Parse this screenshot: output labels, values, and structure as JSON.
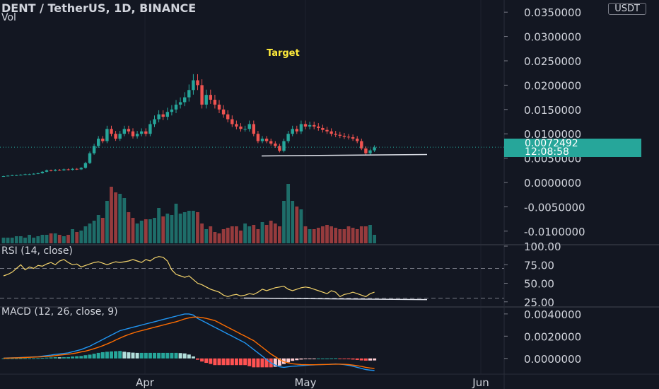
{
  "header": {
    "title": "DENT / TetherUS, 1D, BINANCE",
    "volume_label": "Vol",
    "currency_button": "USDT"
  },
  "annotations": {
    "target_label": "Target"
  },
  "price_badge": {
    "price": "0.0072492",
    "countdown": "12:08:58"
  },
  "indicators": {
    "rsi_label": "RSI (14, close)",
    "macd_label": "MACD (12, 26, close, 9)"
  },
  "colors": {
    "up": "#26a69a",
    "down": "#ef5350",
    "background": "#131722",
    "rsi_line": "#f3d36b",
    "macd_line": "#2196f3",
    "signal_line": "#ff6d00",
    "target_text": "#ffeb3b"
  },
  "chart_data": [
    {
      "type": "candlestick",
      "panel": "price",
      "y_tick_labels": [
        "0.0350000",
        "0.0300000",
        "0.0250000",
        "0.0200000",
        "0.0150000",
        "0.0100000",
        "0.0050000",
        "0.0000000",
        "-0.0050000",
        "-0.0100000"
      ],
      "x_tick_labels": [
        "Apr",
        "May",
        "Jun"
      ],
      "ylim": [
        -0.0125,
        0.0375
      ],
      "log_scale": false,
      "last_price": 0.0072492,
      "support_line": [
        0.00545,
        0.00575
      ],
      "ohlc_close": [
        0.0013,
        0.0014,
        0.0015,
        0.0015,
        0.0016,
        0.0017,
        0.0017,
        0.0018,
        0.0019,
        0.0022,
        0.0025,
        0.0024,
        0.0026,
        0.0025,
        0.0027,
        0.0026,
        0.0028,
        0.0027,
        0.003,
        0.004,
        0.006,
        0.0075,
        0.009,
        0.0085,
        0.011,
        0.01,
        0.009,
        0.01,
        0.011,
        0.0105,
        0.0095,
        0.01,
        0.0105,
        0.01,
        0.012,
        0.013,
        0.014,
        0.0135,
        0.0145,
        0.015,
        0.016,
        0.0165,
        0.0175,
        0.019,
        0.021,
        0.02,
        0.016,
        0.018,
        0.017,
        0.016,
        0.015,
        0.014,
        0.013,
        0.012,
        0.0115,
        0.011,
        0.011,
        0.012,
        0.01,
        0.0085,
        0.009,
        0.0085,
        0.008,
        0.0075,
        0.0065,
        0.0085,
        0.01,
        0.011,
        0.0105,
        0.012,
        0.0115,
        0.0118,
        0.0115,
        0.0112,
        0.0108,
        0.0105,
        0.01,
        0.0098,
        0.0096,
        0.0094,
        0.0093,
        0.009,
        0.0085,
        0.007,
        0.006,
        0.0066,
        0.0072
      ]
    },
    {
      "type": "bar",
      "panel": "volume",
      "values": [
        4,
        4,
        4,
        5,
        5,
        4,
        6,
        4,
        5,
        6,
        6,
        7,
        7,
        6,
        5,
        6,
        10,
        8,
        9,
        12,
        14,
        16,
        20,
        18,
        30,
        40,
        36,
        35,
        32,
        22,
        18,
        14,
        16,
        17,
        17,
        18,
        25,
        19,
        21,
        20,
        28,
        21,
        22,
        23,
        23,
        22,
        14,
        10,
        12,
        8,
        7,
        10,
        11,
        12,
        12,
        9,
        14,
        12,
        13,
        10,
        15,
        13,
        16,
        14,
        12,
        30,
        42,
        30,
        26,
        24,
        12,
        10,
        10,
        11,
        12,
        13,
        12,
        11,
        10,
        10,
        12,
        11,
        10,
        12,
        12,
        13,
        6
      ]
    },
    {
      "type": "line",
      "panel": "rsi",
      "y_tick_labels": [
        "100.00",
        "75.00",
        "50.00",
        "25.00"
      ],
      "ylim": [
        20,
        100
      ],
      "bands": [
        70,
        30
      ],
      "trendline": [
        30,
        28
      ],
      "values": [
        60,
        62,
        65,
        70,
        75,
        68,
        72,
        70,
        74,
        73,
        76,
        78,
        75,
        80,
        82,
        78,
        75,
        76,
        72,
        74,
        76,
        78,
        79,
        77,
        75,
        77,
        79,
        78,
        79,
        80,
        82,
        80,
        78,
        82,
        80,
        84,
        86,
        85,
        80,
        68,
        62,
        60,
        58,
        60,
        55,
        50,
        48,
        45,
        42,
        40,
        38,
        34,
        32,
        34,
        35,
        33,
        34,
        36,
        35,
        38,
        42,
        40,
        42,
        44,
        45,
        46,
        42,
        40,
        42,
        44,
        45,
        44,
        42,
        40,
        38,
        36,
        40,
        38,
        32,
        35,
        36,
        38,
        36,
        34,
        32,
        36,
        38
      ]
    },
    {
      "type": "line",
      "panel": "macd",
      "y_tick_labels": [
        "0.0040000",
        "0.0020000",
        "0.0000000"
      ],
      "ylim": [
        -0.00135,
        0.0045
      ],
      "macd": [
        3e-05,
        4e-05,
        5e-05,
        6e-05,
        8e-05,
        0.0001,
        0.00012,
        0.00014,
        0.00016,
        0.0002,
        0.00025,
        0.0003,
        0.00036,
        0.0004,
        0.00045,
        0.0005,
        0.0006,
        0.0007,
        0.0008,
        0.00095,
        0.0011,
        0.0013,
        0.0015,
        0.0017,
        0.0019,
        0.0021,
        0.0023,
        0.0025,
        0.0026,
        0.0027,
        0.0028,
        0.0029,
        0.003,
        0.0031,
        0.0032,
        0.0033,
        0.0034,
        0.0035,
        0.0036,
        0.0037,
        0.0038,
        0.0039,
        0.004,
        0.004,
        0.0039,
        0.0036,
        0.0034,
        0.0032,
        0.003,
        0.0028,
        0.0026,
        0.0024,
        0.0022,
        0.002,
        0.0018,
        0.0016,
        0.0014,
        0.0011,
        0.0008,
        0.0005,
        0.0002,
        -0.0001,
        -0.0004,
        -0.0006,
        -0.00075,
        -0.0008,
        -0.00075,
        -0.0007,
        -0.00068,
        -0.00065,
        -0.00062,
        -0.0006,
        -0.00058,
        -0.00056,
        -0.00055,
        -0.00054,
        -0.00052,
        -0.0005,
        -0.00052,
        -0.00056,
        -0.00062,
        -0.0007,
        -0.0008,
        -0.0009,
        -0.001,
        -0.00105,
        -0.00108
      ],
      "signal": [
        2e-05,
        3e-05,
        4e-05,
        5e-05,
        6e-05,
        8e-05,
        0.0001,
        0.00012,
        0.00013,
        0.00015,
        0.00018,
        0.00021,
        0.00025,
        0.0003,
        0.00034,
        0.00038,
        0.00043,
        0.0005,
        0.00058,
        0.00066,
        0.00076,
        0.00088,
        0.001,
        0.00114,
        0.0013,
        0.00147,
        0.00165,
        0.00183,
        0.002,
        0.00215,
        0.00228,
        0.0024,
        0.0025,
        0.0026,
        0.0027,
        0.0028,
        0.0029,
        0.003,
        0.0031,
        0.0032,
        0.0033,
        0.00342,
        0.00355,
        0.00365,
        0.00372,
        0.00372,
        0.00368,
        0.0036,
        0.0035,
        0.0034,
        0.0032,
        0.003,
        0.0028,
        0.0026,
        0.0024,
        0.0022,
        0.002,
        0.0018,
        0.0016,
        0.0013,
        0.001,
        0.0007,
        0.0004,
        0.00015,
        -0.0001,
        -0.0003,
        -0.0004,
        -0.00048,
        -0.00052,
        -0.00055,
        -0.00056,
        -0.00057,
        -0.00057,
        -0.00056,
        -0.00055,
        -0.00054,
        -0.00053,
        -0.00052,
        -0.00052,
        -0.00053,
        -0.00055,
        -0.0006,
        -0.00066,
        -0.00072,
        -0.0008,
        -0.00086,
        -0.0009
      ],
      "histogram": [
        1e-05,
        1e-05,
        1e-05,
        1e-05,
        2e-05,
        2e-05,
        2e-05,
        2e-05,
        3e-05,
        5e-05,
        7e-05,
        9e-05,
        0.00011,
        0.0001,
        0.00011,
        0.00012,
        0.00017,
        0.0002,
        0.00022,
        0.00029,
        0.00034,
        0.00042,
        0.0005,
        0.00056,
        0.0006,
        0.00063,
        0.00065,
        0.00067,
        0.0006,
        0.00055,
        0.00052,
        0.0005,
        0.0005,
        0.0005,
        0.0005,
        0.0005,
        0.0005,
        0.0005,
        0.0005,
        0.0005,
        0.0005,
        0.00048,
        0.00045,
        0.00035,
        0.00018,
        -0.00012,
        -0.00028,
        -0.0004,
        -0.0005,
        -0.0006,
        -0.0006,
        -0.0006,
        -0.0006,
        -0.0006,
        -0.0006,
        -0.0006,
        -0.0006,
        -0.0007,
        -0.0008,
        -0.0008,
        -0.0008,
        -0.0008,
        -0.0008,
        -0.00075,
        -0.00065,
        -0.0005,
        -0.00035,
        -0.00022,
        -0.00016,
        -0.0001,
        -6e-05,
        -3e-05,
        -1e-05,
        0.0,
        0.0,
        0.0,
        1e-05,
        2e-05,
        -1e-05,
        -3e-05,
        -7e-05,
        -0.0001,
        -0.00014,
        -0.00018,
        -0.0002,
        -0.00019,
        -0.00018
      ]
    }
  ]
}
